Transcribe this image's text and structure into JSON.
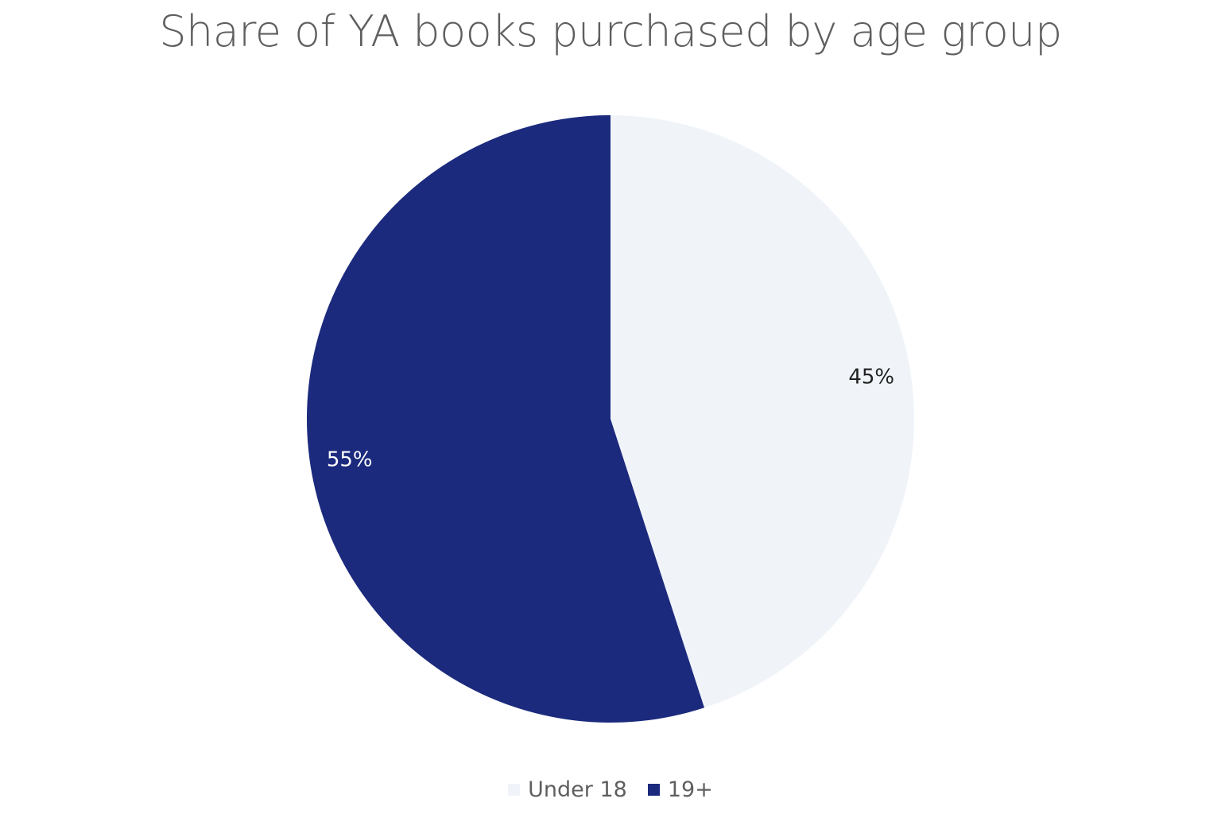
{
  "chart_data": {
    "type": "pie",
    "title": "Share of YA books purchased by age group",
    "slices": [
      {
        "label": "Under 18",
        "value": 45,
        "display": "45%",
        "color": "#f0f4f9",
        "label_color": "#222222"
      },
      {
        "label": "19+",
        "value": 55,
        "display": "55%",
        "color": "#1b2a7d",
        "label_color": "#ffffff"
      }
    ],
    "legend_position": "bottom-center",
    "start_angle": "12 o'clock",
    "direction": "clockwise"
  }
}
